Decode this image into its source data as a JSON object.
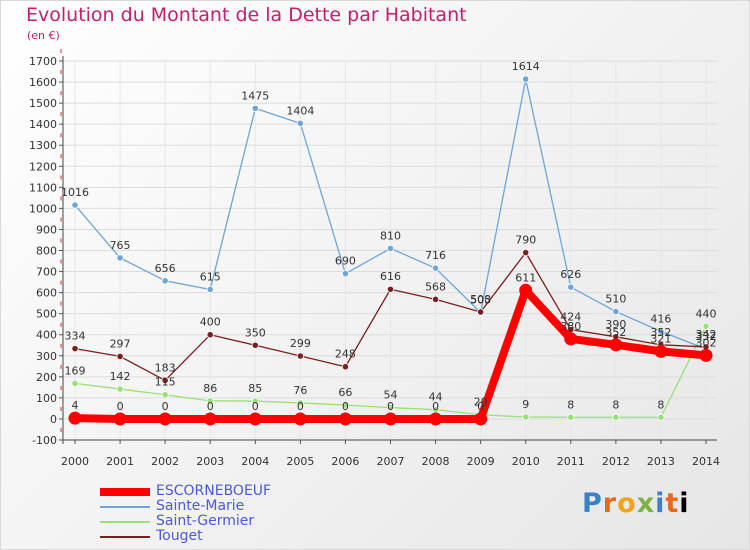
{
  "title": "Evolution du Montant de la Dette par Habitant",
  "unit_label": "(en €)",
  "logo_text": "Proxiti",
  "chart_data": {
    "type": "line",
    "title": "Evolution du Montant de la Dette par Habitant",
    "subtitle": "(en €)",
    "xlabel": "",
    "ylabel": "",
    "x": [
      "2000",
      "2001",
      "2002",
      "2003",
      "2004",
      "2005",
      "2006",
      "2007",
      "2008",
      "2009",
      "2010",
      "2011",
      "2012",
      "2013",
      "2014"
    ],
    "ylim": [
      -100,
      1700
    ],
    "yticks": [
      -100,
      0,
      100,
      200,
      300,
      400,
      500,
      600,
      700,
      800,
      900,
      1000,
      1100,
      1200,
      1300,
      1400,
      1500,
      1600,
      1700
    ],
    "grid": true,
    "legend": "bottom-left",
    "series": [
      {
        "name": "ESCORNEBOEUF",
        "color": "#ff0000",
        "values": [
          4,
          0,
          0,
          0,
          0,
          0,
          0,
          0,
          0,
          0,
          611,
          380,
          352,
          321,
          302
        ],
        "labels": [
          "4",
          "0",
          "0",
          "0",
          "0",
          "0",
          "0",
          "0",
          "0",
          "0",
          "611",
          "380",
          "352",
          "321",
          "302"
        ]
      },
      {
        "name": "Sainte-Marie",
        "color": "#6ea5d7",
        "values": [
          1016,
          765,
          656,
          615,
          1475,
          1404,
          690,
          810,
          716,
          505,
          1614,
          626,
          510,
          416,
          332
        ],
        "labels": [
          "1016",
          "765",
          "656",
          "615",
          "1475",
          "1404",
          "690",
          "810",
          "716",
          "505",
          "1614",
          "626",
          "510",
          "416",
          "332"
        ]
      },
      {
        "name": "Saint-Germier",
        "color": "#99e07a",
        "values": [
          169,
          142,
          115,
          86,
          85,
          76,
          66,
          54,
          44,
          20,
          9,
          8,
          8,
          8,
          440
        ],
        "labels": [
          "169",
          "142",
          "115",
          "86",
          "85",
          "76",
          "66",
          "54",
          "44",
          "20",
          "9",
          "8",
          "8",
          "8",
          "440"
        ]
      },
      {
        "name": "Touget",
        "color": "#7a1f1f",
        "values": [
          334,
          297,
          183,
          400,
          350,
          299,
          248,
          616,
          568,
          508,
          790,
          424,
          390,
          352,
          342
        ],
        "labels": [
          "334",
          "297",
          "183",
          "400",
          "350",
          "299",
          "248",
          "616",
          "568",
          "508",
          "790",
          "424",
          "390",
          "352",
          "342"
        ]
      }
    ]
  }
}
